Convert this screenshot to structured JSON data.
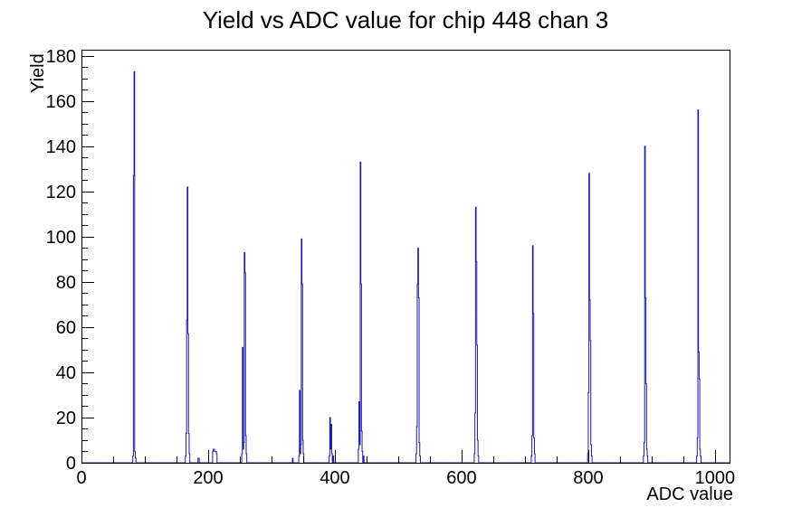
{
  "chart_data": {
    "type": "line",
    "subtype": "step-histogram",
    "title": "Yield vs ADC value for chip 448 chan 3",
    "xlabel": "ADC value",
    "ylabel": "Yield",
    "xlim": [
      0,
      1023
    ],
    "ylim": [
      0,
      182.7
    ],
    "x_major_ticks": [
      0,
      200,
      400,
      600,
      800,
      1000
    ],
    "x_minor_step": 50,
    "y_major_ticks": [
      0,
      20,
      40,
      60,
      80,
      100,
      120,
      140,
      160,
      180
    ],
    "y_minor_step": 5,
    "grid": false,
    "legend": "none",
    "line_color": "#1c1ca8",
    "frame_color": "#000000",
    "bin_width": 1,
    "bins": [
      [
        81,
        3
      ],
      [
        82,
        127
      ],
      [
        83,
        173
      ],
      [
        84,
        5
      ],
      [
        85,
        2
      ],
      [
        164,
        3
      ],
      [
        165,
        13
      ],
      [
        166,
        63
      ],
      [
        167,
        122
      ],
      [
        168,
        57
      ],
      [
        169,
        13
      ],
      [
        170,
        4
      ],
      [
        184,
        2
      ],
      [
        185,
        2
      ],
      [
        207,
        5
      ],
      [
        208,
        6
      ],
      [
        209,
        6
      ],
      [
        210,
        5
      ],
      [
        211,
        5
      ],
      [
        212,
        5
      ],
      [
        213,
        4
      ],
      [
        253,
        4
      ],
      [
        254,
        51
      ],
      [
        255,
        6
      ],
      [
        256,
        9
      ],
      [
        257,
        93
      ],
      [
        258,
        84
      ],
      [
        259,
        12
      ],
      [
        260,
        4
      ],
      [
        333,
        2
      ],
      [
        343,
        3
      ],
      [
        344,
        32
      ],
      [
        345,
        4
      ],
      [
        346,
        8
      ],
      [
        347,
        99
      ],
      [
        348,
        79
      ],
      [
        349,
        10
      ],
      [
        350,
        4
      ],
      [
        391,
        3
      ],
      [
        392,
        20
      ],
      [
        393,
        6
      ],
      [
        394,
        17
      ],
      [
        395,
        4
      ],
      [
        397,
        3
      ],
      [
        437,
        6
      ],
      [
        438,
        27
      ],
      [
        439,
        8
      ],
      [
        440,
        133
      ],
      [
        441,
        79
      ],
      [
        442,
        14
      ],
      [
        443,
        5
      ],
      [
        445,
        3
      ],
      [
        528,
        4
      ],
      [
        529,
        16
      ],
      [
        530,
        79
      ],
      [
        531,
        95
      ],
      [
        532,
        73
      ],
      [
        533,
        9
      ],
      [
        534,
        3
      ],
      [
        620,
        4
      ],
      [
        621,
        22
      ],
      [
        622,
        113
      ],
      [
        623,
        89
      ],
      [
        624,
        52
      ],
      [
        625,
        10
      ],
      [
        626,
        3
      ],
      [
        710,
        3
      ],
      [
        711,
        12
      ],
      [
        712,
        96
      ],
      [
        713,
        66
      ],
      [
        714,
        11
      ],
      [
        715,
        4
      ],
      [
        799,
        4
      ],
      [
        800,
        31
      ],
      [
        801,
        128
      ],
      [
        802,
        72
      ],
      [
        803,
        54
      ],
      [
        804,
        8
      ],
      [
        805,
        3
      ],
      [
        887,
        3
      ],
      [
        888,
        9
      ],
      [
        889,
        140
      ],
      [
        890,
        73
      ],
      [
        891,
        35
      ],
      [
        892,
        6
      ],
      [
        893,
        3
      ],
      [
        971,
        3
      ],
      [
        972,
        11
      ],
      [
        973,
        156
      ],
      [
        974,
        49
      ],
      [
        975,
        37
      ],
      [
        976,
        6
      ],
      [
        977,
        3
      ]
    ],
    "peaks_summary": [
      {
        "adc": 83,
        "yield": 173
      },
      {
        "adc": 167,
        "yield": 122
      },
      {
        "adc": 257,
        "yield": 93
      },
      {
        "adc": 347,
        "yield": 99
      },
      {
        "adc": 392,
        "yield": 20
      },
      {
        "adc": 440,
        "yield": 133
      },
      {
        "adc": 531,
        "yield": 95
      },
      {
        "adc": 622,
        "yield": 113
      },
      {
        "adc": 712,
        "yield": 96
      },
      {
        "adc": 801,
        "yield": 128
      },
      {
        "adc": 889,
        "yield": 140
      },
      {
        "adc": 973,
        "yield": 156
      }
    ]
  }
}
